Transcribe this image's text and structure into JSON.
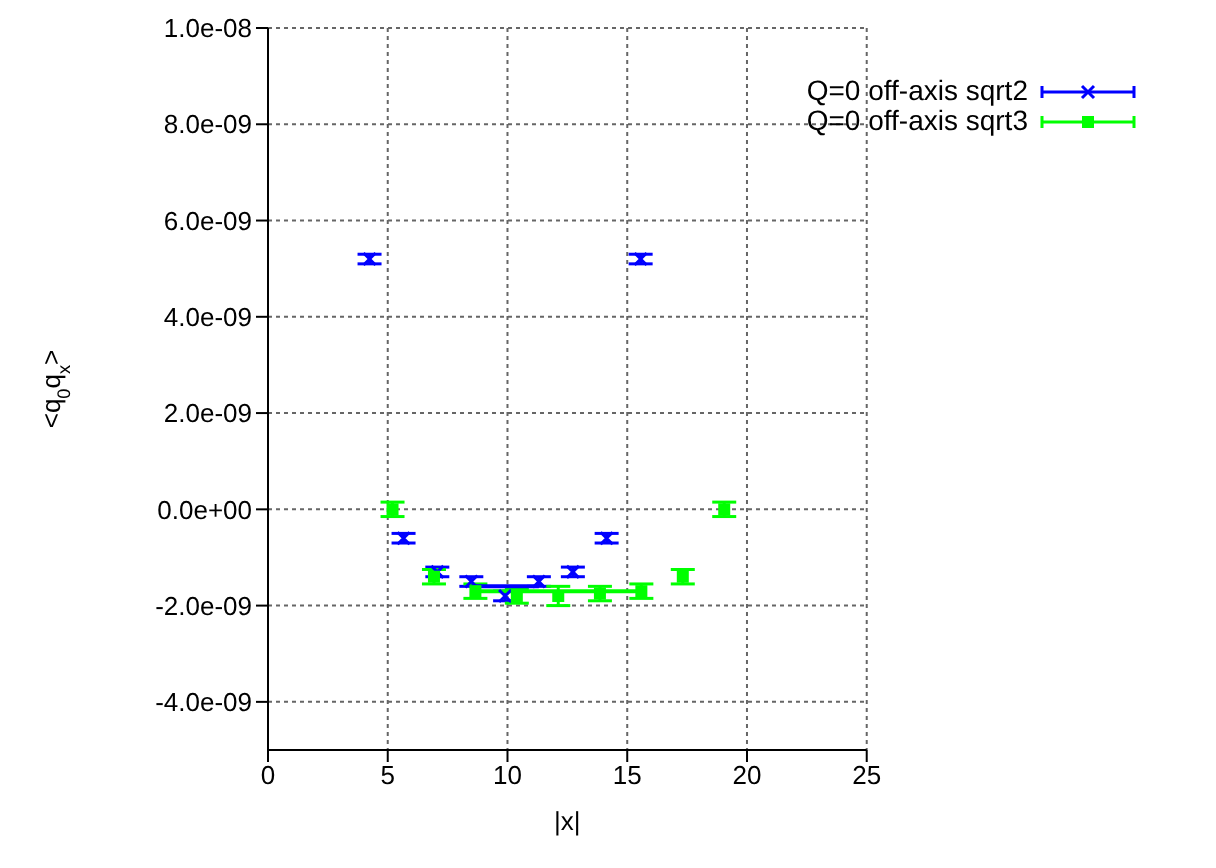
{
  "chart_data": {
    "type": "scatter",
    "xlabel": "|x|",
    "ylabel": "<q$_{0}$q$_{x}$>",
    "xlim": [
      0,
      25
    ],
    "xticks": [
      0,
      5,
      10,
      15,
      20,
      25
    ],
    "ylim": [
      -5e-09,
      1e-08
    ],
    "yticks": [
      {
        "value": -4e-09,
        "label": "-4.0e-09"
      },
      {
        "value": -2e-09,
        "label": "-2.0e-09"
      },
      {
        "value": 0,
        "label": "0.0e+00"
      },
      {
        "value": 2e-09,
        "label": "2.0e-09"
      },
      {
        "value": 4e-09,
        "label": "4.0e-09"
      },
      {
        "value": 6e-09,
        "label": "6.0e-09"
      },
      {
        "value": 8e-09,
        "label": "8.0e-09"
      },
      {
        "value": 1e-08,
        "label": "1.0e-08"
      }
    ],
    "grid": true,
    "legend": "top right",
    "series": [
      {
        "name": "Q=0 off-axis sqrt2",
        "color": "#0000ff",
        "marker": "cross",
        "x": [
          4.24,
          5.66,
          7.07,
          8.49,
          9.9,
          11.31,
          12.73,
          14.14,
          15.56
        ],
        "values": [
          5.2e-09,
          -6e-10,
          -1.3e-09,
          -1.5e-09,
          -1.8e-09,
          -1.5e-09,
          -1.3e-09,
          -6e-10,
          5.2e-09
        ],
        "errors": [
          1e-10,
          1e-10,
          1e-10,
          1e-10,
          1e-10,
          1e-10,
          1e-10,
          1e-10,
          1e-10
        ]
      },
      {
        "name": "Q=0 off-axis sqrt3",
        "color": "#00ff00",
        "marker": "square",
        "x": [
          5.2,
          6.93,
          8.66,
          10.39,
          12.12,
          13.86,
          15.59,
          17.32,
          19.05
        ],
        "values": [
          0,
          -1.4e-09,
          -1.7e-09,
          -1.8e-09,
          -1.8e-09,
          -1.75e-09,
          -1.7e-09,
          -1.4e-09,
          0
        ],
        "errors": [
          1.5e-10,
          1.5e-10,
          1.5e-10,
          1.5e-10,
          2e-10,
          1.5e-10,
          1.5e-10,
          1.5e-10,
          1.5e-10
        ]
      },
      {
        "type": "line",
        "color": "#0000ff",
        "marker": "none",
        "x": [
          8.49,
          11.31
        ],
        "values": [
          -1.6e-09,
          -1.6e-09
        ]
      },
      {
        "type": "line",
        "color": "#00ff00",
        "marker": "none",
        "x": [
          8.66,
          15.59
        ],
        "values": [
          -1.7e-09,
          -1.7e-09
        ]
      }
    ]
  }
}
